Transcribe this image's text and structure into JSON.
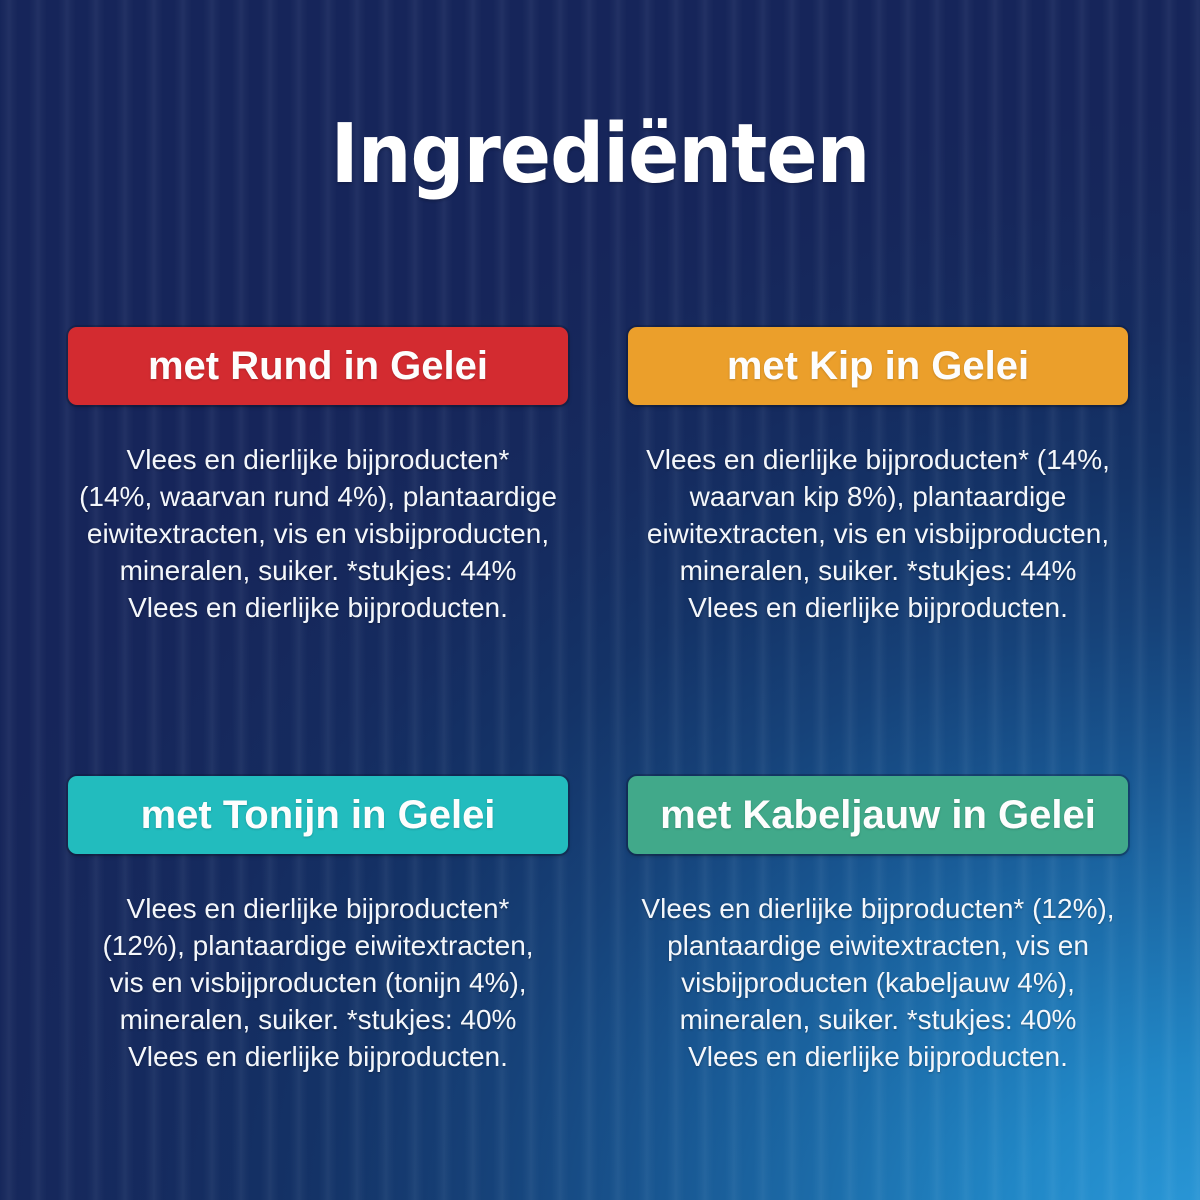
{
  "title": "Ingrediënten",
  "background": {
    "base_dark_color": "#16255a",
    "glow_light_color": "#2b9ada",
    "texture": "soft vertical stripes"
  },
  "cards": [
    {
      "id": "rund-in-gelei",
      "header": {
        "label": "met Rund in Gelei",
        "color": "#d32b30"
      },
      "body": "Vlees en dierlijke bijproducten*\n(14%, waarvan rund 4%), plantaardige\neiwitextracten, vis en visbijproducten,\nmineralen, suiker. *stukjes: 44%\nVlees en dierlijke bijproducten."
    },
    {
      "id": "kip-in-gelei",
      "header": {
        "label": "met Kip in Gelei",
        "color": "#eb9f2b"
      },
      "body": "Vlees en dierlijke bijproducten* (14%,\nwaarvan kip 8%), plantaardige\neiwitextracten, vis en visbijproducten,\nmineralen, suiker. *stukjes: 44%\nVlees en dierlijke bijproducten."
    },
    {
      "id": "tonijn-in-gelei",
      "header": {
        "label": "met Tonijn in Gelei",
        "color": "#22bcbe"
      },
      "body": "Vlees en dierlijke bijproducten*\n(12%),  plantaardige eiwitextracten,\nvis en visbijproducten (tonijn 4%),\nmineralen, suiker. *stukjes: 40%\nVlees en dierlijke bijproducten."
    },
    {
      "id": "kabeljauw-in-gelei",
      "header": {
        "label": "met Kabeljauw in Gelei",
        "color": "#41a98a"
      },
      "body": "Vlees en dierlijke bijproducten* (12%),\nplantaardige eiwitextracten, vis en\nvisbijproducten (kabeljauw 4%),\nmineralen, suiker. *stukjes: 40%\nVlees en dierlijke bijproducten."
    }
  ]
}
